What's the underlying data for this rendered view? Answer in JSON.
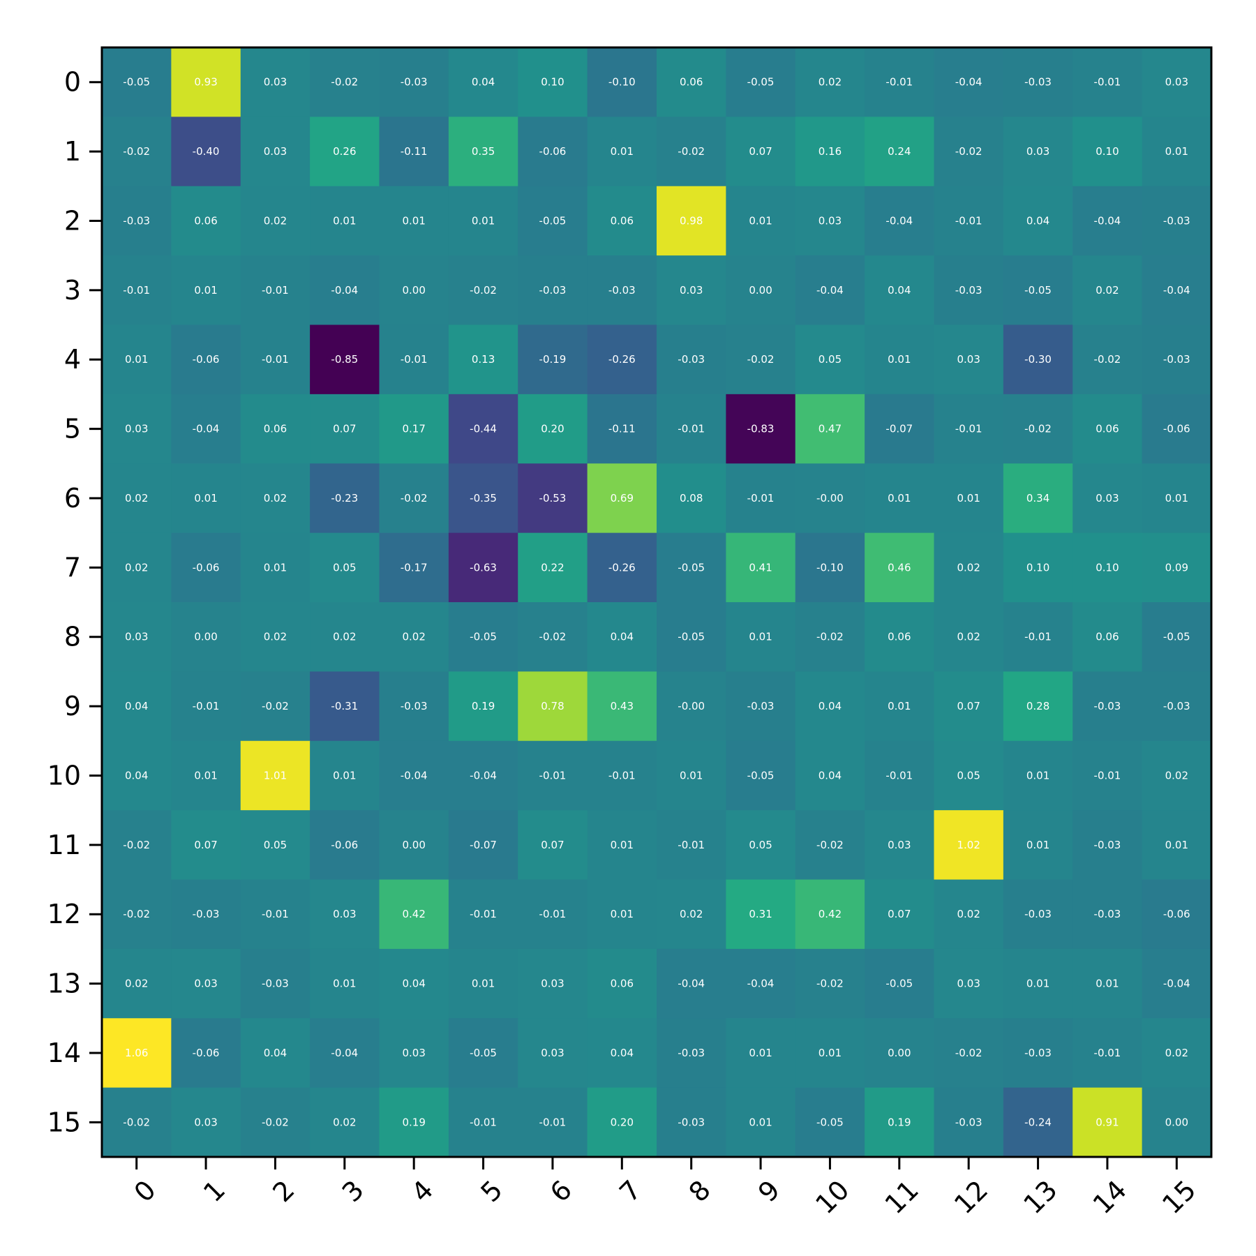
{
  "chart_data": {
    "type": "heatmap",
    "title": "",
    "xlabel": "",
    "ylabel": "",
    "x_categories": [
      "0",
      "1",
      "2",
      "3",
      "4",
      "5",
      "6",
      "7",
      "8",
      "9",
      "10",
      "11",
      "12",
      "13",
      "14",
      "15"
    ],
    "y_categories": [
      "0",
      "1",
      "2",
      "3",
      "4",
      "5",
      "6",
      "7",
      "8",
      "9",
      "10",
      "11",
      "12",
      "13",
      "14",
      "15"
    ],
    "colormap": "viridis",
    "color_range": [
      -0.85,
      1.06
    ],
    "values": [
      [
        -0.05,
        0.93,
        0.03,
        -0.02,
        -0.03,
        0.04,
        0.1,
        -0.1,
        0.06,
        -0.05,
        0.02,
        -0.01,
        -0.04,
        -0.03,
        -0.01,
        0.03
      ],
      [
        -0.02,
        -0.4,
        0.03,
        0.26,
        -0.11,
        0.35,
        -0.06,
        0.01,
        -0.02,
        0.07,
        0.16,
        0.24,
        -0.02,
        0.03,
        0.1,
        0.01
      ],
      [
        -0.03,
        0.06,
        0.02,
        0.01,
        0.01,
        0.01,
        -0.05,
        0.06,
        0.98,
        0.01,
        0.03,
        -0.04,
        -0.01,
        0.04,
        -0.04,
        -0.03
      ],
      [
        -0.01,
        0.01,
        -0.01,
        -0.04,
        0.0,
        -0.02,
        -0.03,
        -0.03,
        0.03,
        0.0,
        -0.04,
        0.04,
        -0.03,
        -0.05,
        0.02,
        -0.04
      ],
      [
        0.01,
        -0.06,
        -0.01,
        -0.85,
        -0.01,
        0.13,
        -0.19,
        -0.26,
        -0.03,
        -0.02,
        0.05,
        0.01,
        0.03,
        -0.3,
        -0.02,
        -0.03
      ],
      [
        0.03,
        -0.04,
        0.06,
        0.07,
        0.17,
        -0.44,
        0.2,
        -0.11,
        -0.01,
        -0.83,
        0.47,
        -0.07,
        -0.01,
        -0.02,
        0.06,
        -0.06
      ],
      [
        0.02,
        0.01,
        0.02,
        -0.23,
        -0.02,
        -0.35,
        -0.53,
        0.69,
        0.08,
        -0.01,
        -0.0,
        0.01,
        0.01,
        0.34,
        0.03,
        0.01
      ],
      [
        0.02,
        -0.06,
        0.01,
        0.05,
        -0.17,
        -0.63,
        0.22,
        -0.26,
        -0.05,
        0.41,
        -0.1,
        0.46,
        0.02,
        0.1,
        0.1,
        0.09
      ],
      [
        0.03,
        0.0,
        0.02,
        0.02,
        0.02,
        -0.05,
        -0.02,
        0.04,
        -0.05,
        0.01,
        -0.02,
        0.06,
        0.02,
        -0.01,
        0.06,
        -0.05
      ],
      [
        0.04,
        -0.01,
        -0.02,
        -0.31,
        -0.03,
        0.19,
        0.78,
        0.43,
        -0.0,
        -0.03,
        0.04,
        0.01,
        0.07,
        0.28,
        -0.03,
        -0.03
      ],
      [
        0.04,
        0.01,
        1.01,
        0.01,
        -0.04,
        -0.04,
        -0.01,
        -0.01,
        0.01,
        -0.05,
        0.04,
        -0.01,
        0.05,
        0.01,
        -0.01,
        0.02
      ],
      [
        -0.02,
        0.07,
        0.05,
        -0.06,
        0.0,
        -0.07,
        0.07,
        0.01,
        -0.01,
        0.05,
        -0.02,
        0.03,
        1.02,
        0.01,
        -0.03,
        0.01
      ],
      [
        -0.02,
        -0.03,
        -0.01,
        0.03,
        0.42,
        -0.01,
        -0.01,
        0.01,
        0.02,
        0.31,
        0.42,
        0.07,
        0.02,
        -0.03,
        -0.03,
        -0.06
      ],
      [
        0.02,
        0.03,
        -0.03,
        0.01,
        0.04,
        0.01,
        0.03,
        0.06,
        -0.04,
        -0.04,
        -0.02,
        -0.05,
        0.03,
        0.01,
        0.01,
        -0.04
      ],
      [
        1.06,
        -0.06,
        0.04,
        -0.04,
        0.03,
        -0.05,
        0.03,
        0.04,
        -0.03,
        0.01,
        0.01,
        0.0,
        -0.02,
        -0.03,
        -0.01,
        0.02
      ],
      [
        -0.02,
        0.03,
        -0.02,
        0.02,
        0.19,
        -0.01,
        -0.01,
        0.2,
        -0.03,
        0.01,
        -0.05,
        0.19,
        -0.03,
        -0.24,
        0.91,
        0.0
      ]
    ],
    "cell_labels": [
      [
        "-0.05",
        "0.93",
        "0.03",
        "-0.02",
        "-0.03",
        "0.04",
        "0.10",
        "-0.10",
        "0.06",
        "-0.05",
        "0.02",
        "-0.01",
        "-0.04",
        "-0.03",
        "-0.01",
        "0.03"
      ],
      [
        "-0.02",
        "-0.40",
        "0.03",
        "0.26",
        "-0.11",
        "0.35",
        "-0.06",
        "0.01",
        "-0.02",
        "0.07",
        "0.16",
        "0.24",
        "-0.02",
        "0.03",
        "0.10",
        "0.01"
      ],
      [
        "-0.03",
        "0.06",
        "0.02",
        "0.01",
        "0.01",
        "0.01",
        "-0.05",
        "0.06",
        "0.98",
        "0.01",
        "0.03",
        "-0.04",
        "-0.01",
        "0.04",
        "-0.04",
        "-0.03"
      ],
      [
        "-0.01",
        "0.01",
        "-0.01",
        "-0.04",
        "0.00",
        "-0.02",
        "-0.03",
        "-0.03",
        "0.03",
        "0.00",
        "-0.04",
        "0.04",
        "-0.03",
        "-0.05",
        "0.02",
        "-0.04"
      ],
      [
        "0.01",
        "-0.06",
        "-0.01",
        "-0.85",
        "-0.01",
        "0.13",
        "-0.19",
        "-0.26",
        "-0.03",
        "-0.02",
        "0.05",
        "0.01",
        "0.03",
        "-0.30",
        "-0.02",
        "-0.03"
      ],
      [
        "0.03",
        "-0.04",
        "0.06",
        "0.07",
        "0.17",
        "-0.44",
        "0.20",
        "-0.11",
        "-0.01",
        "-0.83",
        "0.47",
        "-0.07",
        "-0.01",
        "-0.02",
        "0.06",
        "-0.06"
      ],
      [
        "0.02",
        "0.01",
        "0.02",
        "-0.23",
        "-0.02",
        "-0.35",
        "-0.53",
        "0.69",
        "0.08",
        "-0.01",
        "-0.00",
        "0.01",
        "0.01",
        "0.34",
        "0.03",
        "0.01"
      ],
      [
        "0.02",
        "-0.06",
        "0.01",
        "0.05",
        "-0.17",
        "-0.63",
        "0.22",
        "-0.26",
        "-0.05",
        "0.41",
        "-0.10",
        "0.46",
        "0.02",
        "0.10",
        "0.10",
        "0.09"
      ],
      [
        "0.03",
        "0.00",
        "0.02",
        "0.02",
        "0.02",
        "-0.05",
        "-0.02",
        "0.04",
        "-0.05",
        "0.01",
        "-0.02",
        "0.06",
        "0.02",
        "-0.01",
        "0.06",
        "-0.05"
      ],
      [
        "0.04",
        "-0.01",
        "-0.02",
        "-0.31",
        "-0.03",
        "0.19",
        "0.78",
        "0.43",
        "-0.00",
        "-0.03",
        "0.04",
        "0.01",
        "0.07",
        "0.28",
        "-0.03",
        "-0.03"
      ],
      [
        "0.04",
        "0.01",
        "1.01",
        "0.01",
        "-0.04",
        "-0.04",
        "-0.01",
        "-0.01",
        "0.01",
        "-0.05",
        "0.04",
        "-0.01",
        "0.05",
        "0.01",
        "-0.01",
        "0.02"
      ],
      [
        "-0.02",
        "0.07",
        "0.05",
        "-0.06",
        "0.00",
        "-0.07",
        "0.07",
        "0.01",
        "-0.01",
        "0.05",
        "-0.02",
        "0.03",
        "1.02",
        "0.01",
        "-0.03",
        "0.01"
      ],
      [
        "-0.02",
        "-0.03",
        "-0.01",
        "0.03",
        "0.42",
        "-0.01",
        "-0.01",
        "0.01",
        "0.02",
        "0.31",
        "0.42",
        "0.07",
        "0.02",
        "-0.03",
        "-0.03",
        "-0.06"
      ],
      [
        "0.02",
        "0.03",
        "-0.03",
        "0.01",
        "0.04",
        "0.01",
        "0.03",
        "0.06",
        "-0.04",
        "-0.04",
        "-0.02",
        "-0.05",
        "0.03",
        "0.01",
        "0.01",
        "-0.04"
      ],
      [
        "1.06",
        "-0.06",
        "0.04",
        "-0.04",
        "0.03",
        "-0.05",
        "0.03",
        "0.04",
        "-0.03",
        "0.01",
        "0.01",
        "0.00",
        "-0.02",
        "-0.03",
        "-0.01",
        "0.02"
      ],
      [
        "-0.02",
        "0.03",
        "-0.02",
        "0.02",
        "0.19",
        "-0.01",
        "-0.01",
        "0.20",
        "-0.03",
        "0.01",
        "-0.05",
        "0.19",
        "-0.03",
        "-0.24",
        "0.91",
        "0.00"
      ]
    ],
    "x_tick_rotation": "45",
    "grid": false,
    "legend": "none"
  }
}
